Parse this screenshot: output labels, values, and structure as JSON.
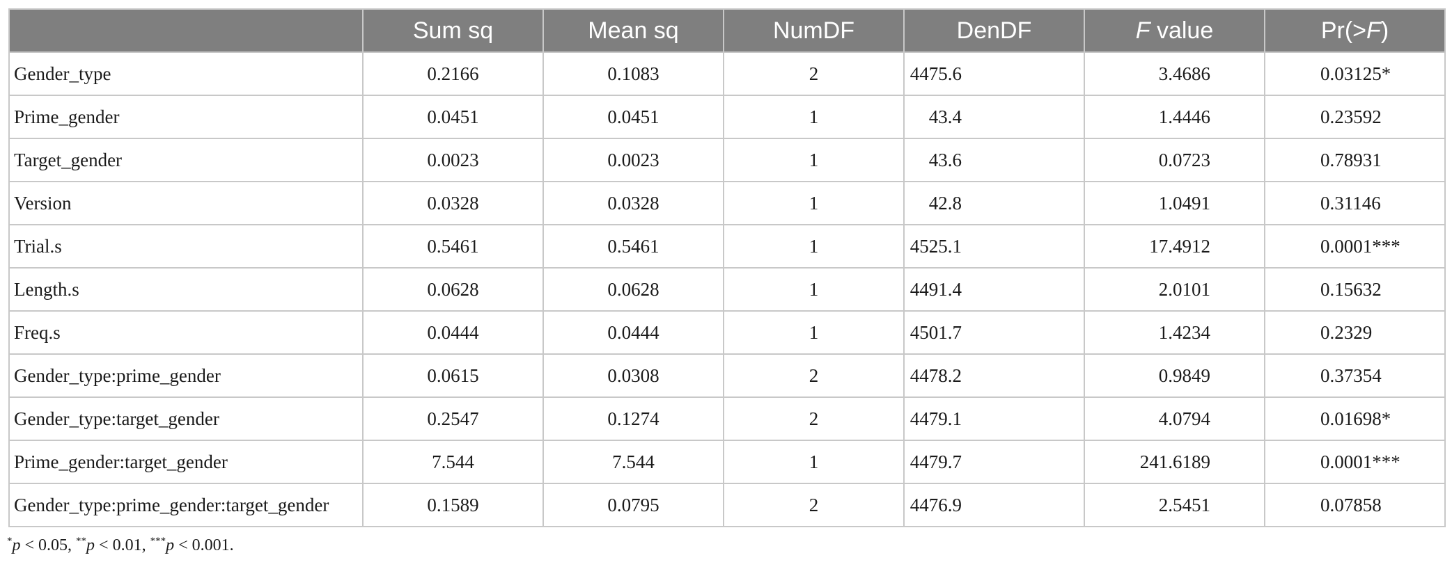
{
  "table": {
    "headers": {
      "term": "",
      "sum_sq": "Sum sq",
      "mean_sq": "Mean sq",
      "numdf": "NumDF",
      "dendf": "DenDF",
      "f_value_italic": "F",
      "f_value_rest": " value",
      "pr_open": "Pr(>",
      "pr_italic": "F",
      "pr_close": ")"
    },
    "rows": [
      {
        "term": "Gender_type",
        "sum_sq": "0.2166",
        "mean_sq": "0.1083",
        "numdf": "2",
        "dendf": "4475.6",
        "f_value": "3.4686",
        "p": "0.03125*"
      },
      {
        "term": "Prime_gender",
        "sum_sq": "0.0451",
        "mean_sq": "0.0451",
        "numdf": "1",
        "dendf": "43.4",
        "f_value": "1.4446",
        "p": "0.23592"
      },
      {
        "term": "Target_gender",
        "sum_sq": "0.0023",
        "mean_sq": "0.0023",
        "numdf": "1",
        "dendf": "43.6",
        "f_value": "0.0723",
        "p": "0.78931"
      },
      {
        "term": "Version",
        "sum_sq": "0.0328",
        "mean_sq": "0.0328",
        "numdf": "1",
        "dendf": "42.8",
        "f_value": "1.0491",
        "p": "0.31146"
      },
      {
        "term": "Trial.s",
        "sum_sq": "0.5461",
        "mean_sq": "0.5461",
        "numdf": "1",
        "dendf": "4525.1",
        "f_value": "17.4912",
        "p": "0.0001***"
      },
      {
        "term": "Length.s",
        "sum_sq": "0.0628",
        "mean_sq": "0.0628",
        "numdf": "1",
        "dendf": "4491.4",
        "f_value": "2.0101",
        "p": "0.15632"
      },
      {
        "term": "Freq.s",
        "sum_sq": "0.0444",
        "mean_sq": "0.0444",
        "numdf": "1",
        "dendf": "4501.7",
        "f_value": "1.4234",
        "p": "0.2329"
      },
      {
        "term": "Gender_type:prime_gender",
        "sum_sq": "0.0615",
        "mean_sq": "0.0308",
        "numdf": "2",
        "dendf": "4478.2",
        "f_value": "0.9849",
        "p": "0.37354"
      },
      {
        "term": "Gender_type:target_gender",
        "sum_sq": "0.2547",
        "mean_sq": "0.1274",
        "numdf": "2",
        "dendf": "4479.1",
        "f_value": "4.0794",
        "p": "0.01698*"
      },
      {
        "term": "Prime_gender:target_gender",
        "sum_sq": "7.544",
        "mean_sq": "7.544",
        "numdf": "1",
        "dendf": "4479.7",
        "f_value": "241.6189",
        "p": "0.0001***"
      },
      {
        "term": "Gender_type:prime_gender:target_gender",
        "sum_sq": "0.1589",
        "mean_sq": "0.0795",
        "numdf": "2",
        "dendf": "4476.9",
        "f_value": "2.5451",
        "p": "0.07858"
      }
    ]
  },
  "footnote": {
    "s1_sup": "*",
    "s1_var": "p",
    "s1_rest": " < 0.05, ",
    "s2_sup": "**",
    "s2_var": "p",
    "s2_rest": " < 0.01, ",
    "s3_sup": "***",
    "s3_var": "p",
    "s3_rest": " < 0.001."
  }
}
